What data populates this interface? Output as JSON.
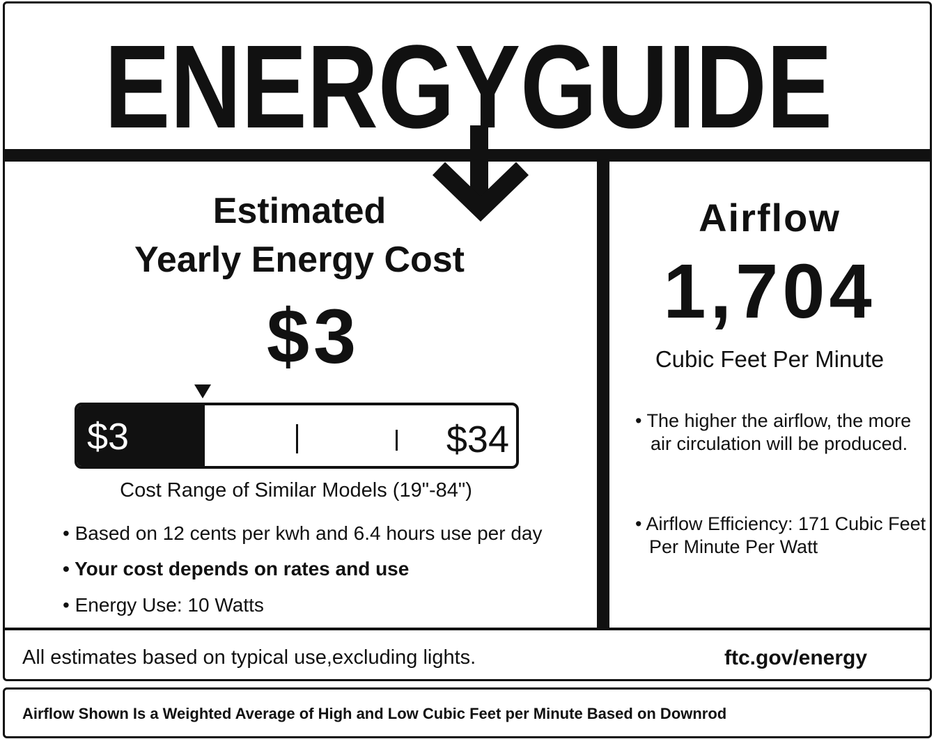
{
  "logo": {
    "text": "ENERGYGUIDE"
  },
  "cost": {
    "heading_line1": "Estimated",
    "heading_line2": "Yearly Energy Cost",
    "value": "$3",
    "range_min": "$3",
    "range_max": "$34",
    "marker_value": 3,
    "range_label": "Cost Range of Similar Models (19\"-84\")",
    "bullets": [
      "• Based on 12 cents per kwh and 6.4 hours use per day",
      "• Your cost depends on rates and use",
      "• Energy Use: 10 Watts"
    ]
  },
  "airflow": {
    "heading": "Airflow",
    "value": "1,704",
    "unit": "Cubic Feet Per Minute",
    "bullet1": "• The higher the airflow, the more air circulation will be produced.",
    "bullet2": "•  Airflow Efficiency: 171 Cubic Feet Per Minute Per Watt"
  },
  "footer": {
    "note": "All estimates based on typical use,excluding lights.",
    "link": "ftc.gov/energy",
    "disclaimer": "Airflow Shown Is a Weighted Average of High and Low Cubic Feet per Minute Based on Downrod"
  }
}
